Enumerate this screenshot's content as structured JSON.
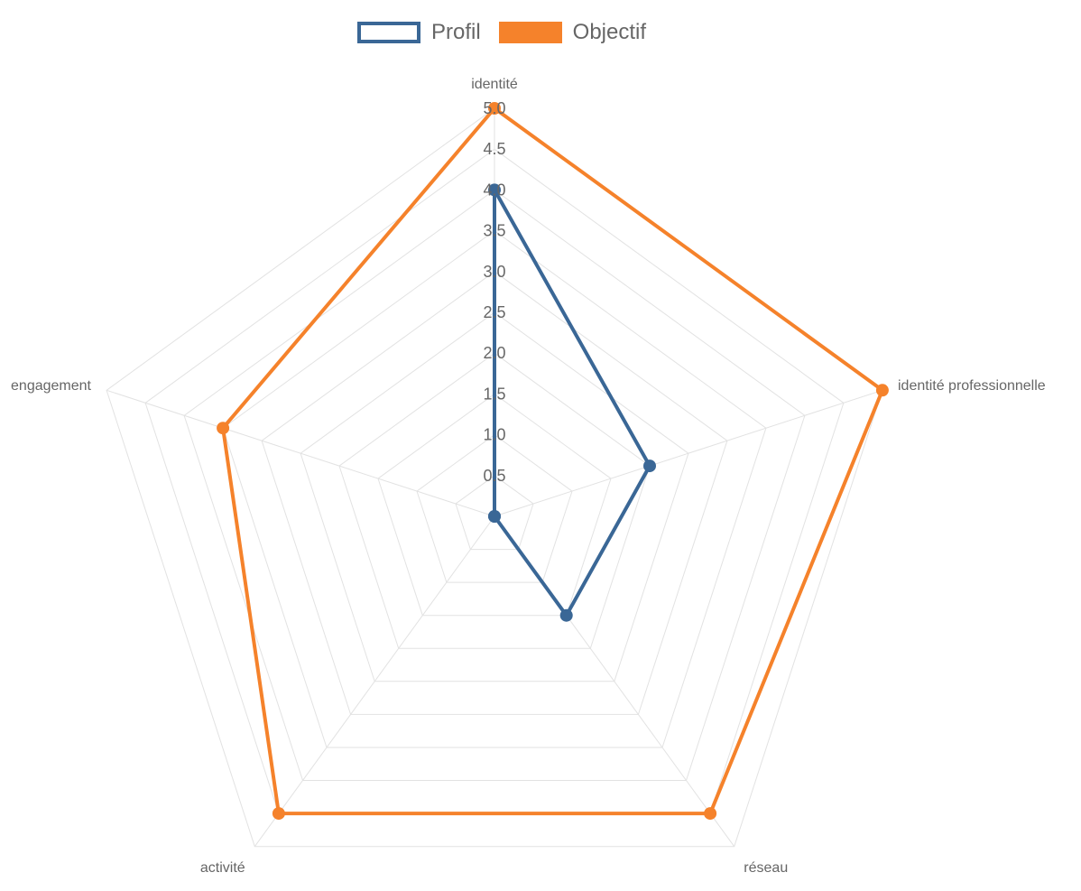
{
  "chart_data": {
    "type": "radar",
    "axes": [
      "identité",
      "identité professionnelle",
      "réseau",
      "activité",
      "engagement"
    ],
    "ticks": [
      "0.5",
      "1.0",
      "1.5",
      "2.0",
      "2.5",
      "3.0",
      "3.5",
      "4.0",
      "4.5",
      "5.0"
    ],
    "range": [
      0,
      5
    ],
    "grid": true,
    "legend_position": "top",
    "series": [
      {
        "name": "Profil",
        "values": [
          4.0,
          2.0,
          1.5,
          0.0,
          0.0
        ],
        "color": "#3a6796",
        "fill": "none"
      },
      {
        "name": "Objectif",
        "values": [
          5.0,
          5.0,
          4.5,
          4.5,
          3.5
        ],
        "color": "#f5822b",
        "fill": "none"
      }
    ]
  }
}
